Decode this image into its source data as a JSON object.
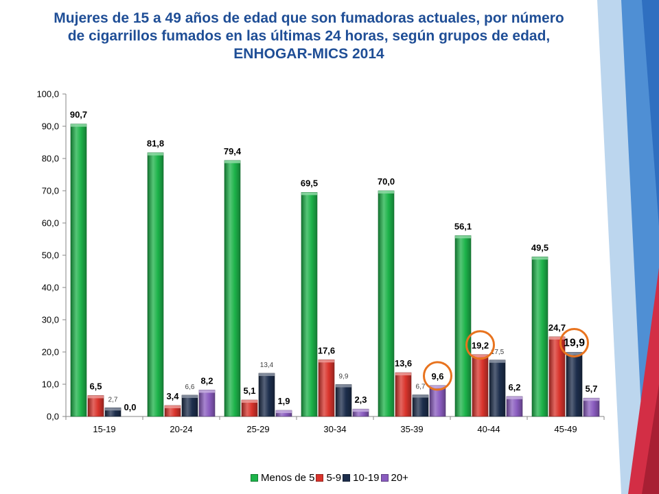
{
  "slide": {
    "title_lines": [
      "Mujeres de 15 a 49 años de edad que son fumadoras actuales, por número",
      "de cigarrillos fumados en las últimas 24 horas, según grupos de edad,",
      "ENHOGAR-MICS 2014"
    ],
    "title_color": "#1f4e96"
  },
  "chart_data": {
    "type": "bar",
    "categories": [
      "15-19",
      "20-24",
      "25-29",
      "30-34",
      "35-39",
      "40-44",
      "45-49"
    ],
    "series": [
      {
        "name": "Menos de 5",
        "color": "#1db34a",
        "values": [
          90.7,
          81.8,
          79.4,
          69.5,
          70.0,
          56.1,
          49.5
        ],
        "labels": [
          "90,7",
          "81,8",
          "79,4",
          "69,5",
          "70,0",
          "56,1",
          "49,5"
        ]
      },
      {
        "name": "5-9",
        "color": "#d9342c",
        "values": [
          6.5,
          3.4,
          5.1,
          17.6,
          13.6,
          19.2,
          24.7
        ],
        "labels": [
          "6,5",
          "3,4",
          "5,1",
          "17,6",
          "13,6",
          "19,2",
          "24,7"
        ]
      },
      {
        "name": "10-19",
        "color": "#1d2e4c",
        "values": [
          2.7,
          6.6,
          13.4,
          9.9,
          6.7,
          17.5,
          19.9
        ],
        "labels": [
          "2,7",
          "6,6",
          "13,4",
          "9,9",
          "6,7",
          "17,5",
          "19,9"
        ]
      },
      {
        "name": "20+",
        "color": "#8a5cbf",
        "values": [
          0.0,
          8.2,
          1.9,
          2.3,
          9.6,
          6.2,
          5.7
        ],
        "labels": [
          "0,0",
          "8,2",
          "1,9",
          "2,3",
          "9,6",
          "6,2",
          "5,7"
        ]
      }
    ],
    "y_ticks": [
      "0,0",
      "10,0",
      "20,0",
      "30,0",
      "40,0",
      "50,0",
      "60,0",
      "70,0",
      "80,0",
      "90,0",
      "100,0"
    ],
    "ylim": [
      0,
      100
    ],
    "legend_position": "bottom",
    "highlighted_points": [
      {
        "series": "20+",
        "category": "35-39"
      },
      {
        "series": "5-9",
        "category": "40-44"
      },
      {
        "series": "10-19",
        "category": "45-49"
      }
    ],
    "highlight_color": "#e8731e"
  }
}
